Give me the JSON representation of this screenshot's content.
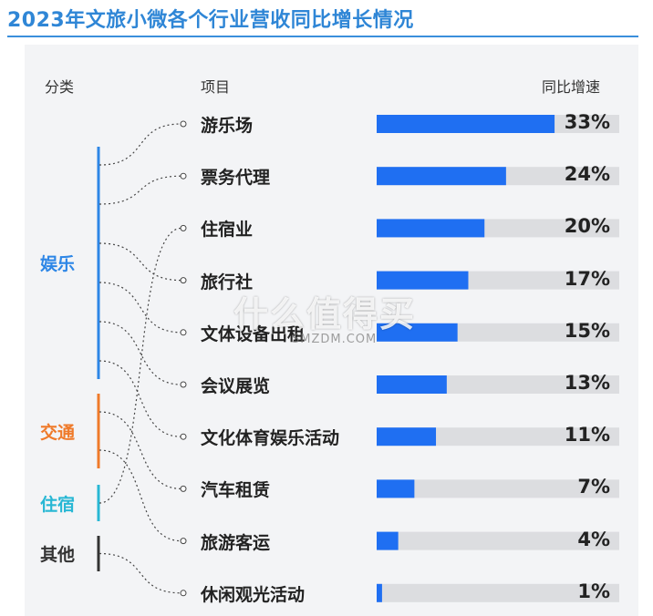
{
  "title": "2023年文旅小微各个行业营收同比增长情况",
  "headers": {
    "category": "分类",
    "item": "项目",
    "rate": "同比增速"
  },
  "watermark": {
    "main": "什么值得买",
    "sub": "SMZDM.COM"
  },
  "colors": {
    "bar": "#1f6ff2",
    "track": "#dcdde0",
    "entertainment": "#2d86e6",
    "transport": "#ef7a2a",
    "lodging": "#28b7d4",
    "other": "#333333"
  },
  "categories": [
    {
      "key": "entertainment",
      "label": "娱乐"
    },
    {
      "key": "transport",
      "label": "交通"
    },
    {
      "key": "lodging",
      "label": "住宿"
    },
    {
      "key": "other",
      "label": "其他"
    }
  ],
  "chart_data": {
    "type": "bar",
    "orientation": "horizontal",
    "categories": [
      "游乐场",
      "票务代理",
      "住宿业",
      "旅行社",
      "文体设备出租",
      "会议展览",
      "文化体育娱乐活动",
      "汽车租赁",
      "旅游客运",
      "休闲观光活动"
    ],
    "values": [
      33,
      24,
      20,
      17,
      15,
      13,
      11,
      7,
      4,
      1
    ],
    "value_labels": [
      "33%",
      "24%",
      "20%",
      "17%",
      "15%",
      "13%",
      "11%",
      "7%",
      "4%",
      "1%"
    ],
    "xlim": [
      0,
      45
    ],
    "groups": [
      "entertainment",
      "entertainment",
      "lodging",
      "entertainment",
      "entertainment",
      "entertainment",
      "entertainment",
      "transport",
      "transport",
      "other"
    ]
  }
}
